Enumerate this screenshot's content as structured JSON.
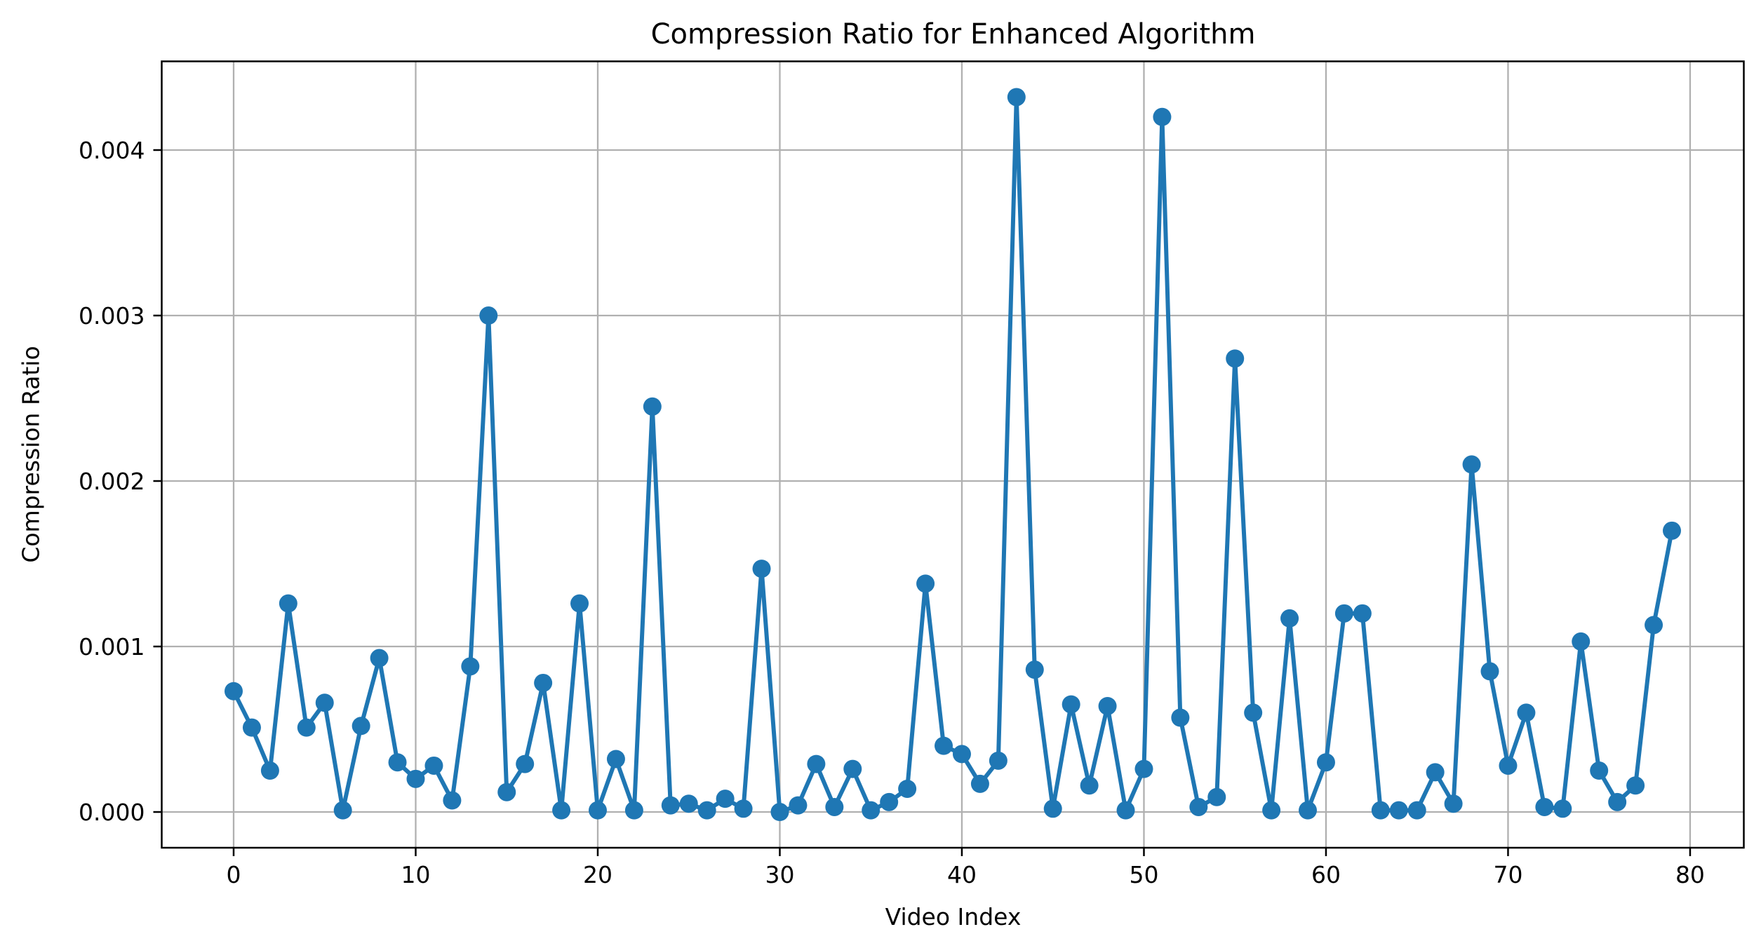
{
  "chart_data": {
    "type": "line",
    "title": "Compression Ratio for Enhanced Algorithm",
    "xlabel": "Video Index",
    "ylabel": "Compression Ratio",
    "x_start": 0,
    "x_step": 1,
    "values": [
      0.00073,
      0.00051,
      0.00025,
      0.00126,
      0.00051,
      0.00066,
      1e-05,
      0.00052,
      0.00093,
      0.0003,
      0.0002,
      0.00028,
      7e-05,
      0.00088,
      0.003,
      0.00012,
      0.00029,
      0.00078,
      1e-05,
      0.00126,
      1e-05,
      0.00032,
      1e-05,
      0.00245,
      4e-05,
      5e-05,
      1e-05,
      8e-05,
      2e-05,
      0.00147,
      0.0,
      4e-05,
      0.00029,
      3e-05,
      0.00026,
      1e-05,
      6e-05,
      0.00014,
      0.00138,
      0.0004,
      0.00035,
      0.00017,
      0.00031,
      0.00432,
      0.00086,
      2e-05,
      0.00065,
      0.00016,
      0.00064,
      1e-05,
      0.00026,
      0.0042,
      0.00057,
      3e-05,
      9e-05,
      0.00274,
      0.0006,
      1e-05,
      0.00117,
      1e-05,
      0.0003,
      0.0012,
      0.0012,
      1e-05,
      1e-05,
      1e-05,
      0.00024,
      5e-05,
      0.0021,
      0.00085,
      0.00028,
      0.0006,
      3e-05,
      2e-05,
      0.00103,
      0.00025,
      6e-05,
      0.00016,
      0.00113,
      0.0017
    ],
    "xticks": [
      0,
      10,
      20,
      30,
      40,
      50,
      60,
      70,
      80
    ],
    "ytick_values": [
      0.0,
      0.001,
      0.002,
      0.003,
      0.004
    ],
    "ytick_labels": [
      "0.000",
      "0.001",
      "0.002",
      "0.003",
      "0.004"
    ],
    "xlim": [
      -3.95,
      82.95
    ],
    "ylim": [
      -0.000216,
      0.004536
    ],
    "grid": true,
    "legend": "none",
    "line_color": "#1f77b4",
    "marker": "o",
    "grid_color": "#b0b0b0",
    "spine_color": "#000000",
    "background_color": "#ffffff"
  }
}
